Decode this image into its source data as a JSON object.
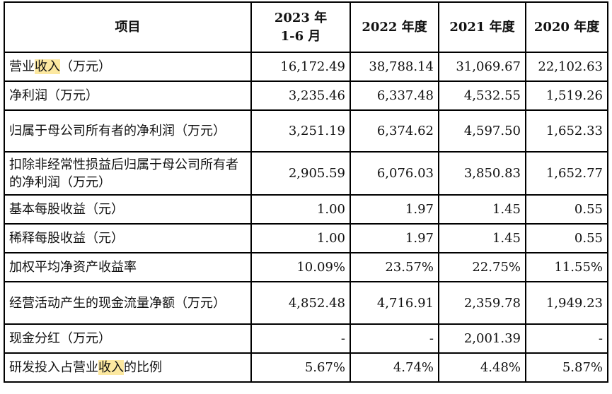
{
  "table": {
    "headers": [
      "项目",
      "2023 年 1-6 月",
      "2022 年度",
      "2021 年度",
      "2020 年度"
    ],
    "rows": [
      {
        "pre": "营业",
        "hl": "收入",
        "post": "（万元）",
        "values": [
          "16,172.49",
          "38,788.14",
          "31,069.67",
          "22,102.63"
        ]
      },
      {
        "pre": "净利润（万元）",
        "hl": "",
        "post": "",
        "values": [
          "3,235.46",
          "6,337.48",
          "4,532.55",
          "1,519.26"
        ]
      },
      {
        "pre": "归属于母公司所有者的净利润（万元）",
        "hl": "",
        "post": "",
        "values": [
          "3,251.19",
          "6,374.62",
          "4,597.50",
          "1,652.33"
        ]
      },
      {
        "pre": "扣除非经常性损益后归属于母公司所有者的净利润（万元）",
        "hl": "",
        "post": "",
        "values": [
          "2,905.59",
          "6,076.03",
          "3,850.83",
          "1,652.77"
        ]
      },
      {
        "pre": "基本每股收益（元）",
        "hl": "",
        "post": "",
        "values": [
          "1.00",
          "1.97",
          "1.45",
          "0.55"
        ]
      },
      {
        "pre": "稀释每股收益（元）",
        "hl": "",
        "post": "",
        "values": [
          "1.00",
          "1.97",
          "1.45",
          "0.55"
        ]
      },
      {
        "pre": "加权平均净资产收益率",
        "hl": "",
        "post": "",
        "values": [
          "10.09%",
          "23.57%",
          "22.75%",
          "11.55%"
        ]
      },
      {
        "pre": "经营活动产生的现金流量净额（万元）",
        "hl": "",
        "post": "",
        "values": [
          "4,852.48",
          "4,716.91",
          "2,359.78",
          "1,949.23"
        ]
      },
      {
        "pre": "现金分红（万元）",
        "hl": "",
        "post": "",
        "values": [
          "-",
          "-",
          "2,001.39",
          "-"
        ]
      },
      {
        "pre": "研发投入占营业",
        "hl": "收入",
        "post": "的比例",
        "values": [
          "5.67%",
          "4.74%",
          "4.48%",
          "5.87%"
        ]
      }
    ]
  },
  "colors": {
    "highlight": "#fce8a0",
    "border": "#000000"
  }
}
